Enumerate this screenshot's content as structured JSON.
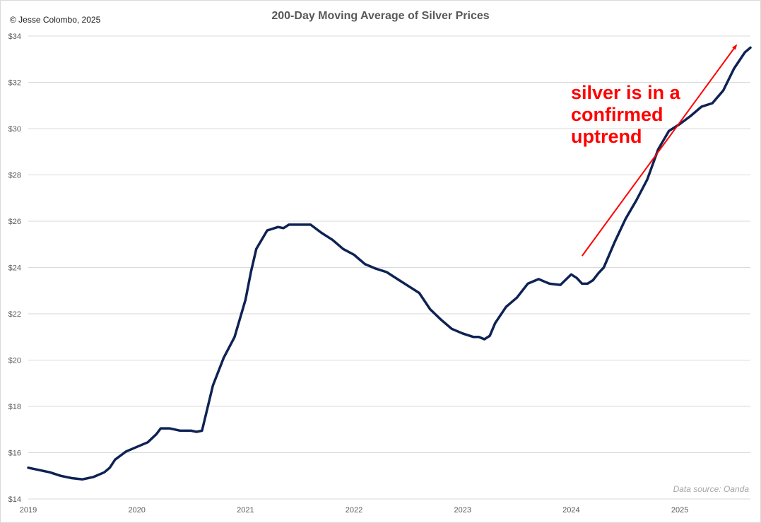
{
  "header": {
    "copyright": "© Jesse Colombo, 2025",
    "title": "200-Day Moving Average of Silver Prices"
  },
  "annotation": {
    "line1": "silver is in a",
    "line2": "confirmed",
    "line3": "uptrend",
    "color": "#ff0000"
  },
  "footer": {
    "source": "Data source: Oanda"
  },
  "colors": {
    "series": "#0e2254",
    "grid": "#d9d9d9",
    "arrow": "#ff0000"
  },
  "chart_data": {
    "type": "line",
    "title": "200-Day Moving Average of Silver Prices",
    "xlabel": "",
    "ylabel": "",
    "xlim": [
      2019.0,
      2025.65
    ],
    "ylim": [
      14,
      34
    ],
    "y_ticks": [
      14,
      16,
      18,
      20,
      22,
      24,
      26,
      28,
      30,
      32,
      34
    ],
    "y_tick_labels": [
      "$14",
      "$16",
      "$18",
      "$20",
      "$22",
      "$24",
      "$26",
      "$28",
      "$30",
      "$32",
      "$34"
    ],
    "x_ticks": [
      2019,
      2020,
      2021,
      2022,
      2023,
      2024,
      2025
    ],
    "x_tick_labels": [
      "2019",
      "2020",
      "2021",
      "2022",
      "2023",
      "2024",
      "2025"
    ],
    "grid": "horizontal",
    "legend": "none",
    "series": [
      {
        "x": [
          2019.0,
          2019.1,
          2019.2,
          2019.3,
          2019.4,
          2019.5,
          2019.6,
          2019.7,
          2019.75,
          2019.8,
          2019.9,
          2020.0,
          2020.1,
          2020.18,
          2020.22,
          2020.3,
          2020.4,
          2020.5,
          2020.55,
          2020.6,
          2020.7,
          2020.8,
          2020.9,
          2021.0,
          2021.05,
          2021.1,
          2021.2,
          2021.3,
          2021.35,
          2021.4,
          2021.5,
          2021.6,
          2021.7,
          2021.75,
          2021.8,
          2021.9,
          2022.0,
          2022.1,
          2022.2,
          2022.3,
          2022.4,
          2022.5,
          2022.6,
          2022.7,
          2022.8,
          2022.9,
          2023.0,
          2023.1,
          2023.15,
          2023.2,
          2023.25,
          2023.3,
          2023.4,
          2023.5,
          2023.6,
          2023.7,
          2023.75,
          2023.8,
          2023.9,
          2024.0,
          2024.05,
          2024.1,
          2024.15,
          2024.2,
          2024.25,
          2024.3,
          2024.4,
          2024.5,
          2024.6,
          2024.7,
          2024.8,
          2024.9,
          2025.0,
          2025.1,
          2025.2,
          2025.3,
          2025.4,
          2025.5,
          2025.6,
          2025.65
        ],
        "y": [
          15.35,
          15.25,
          15.15,
          15.0,
          14.9,
          14.85,
          14.95,
          15.15,
          15.35,
          15.7,
          16.05,
          16.25,
          16.45,
          16.8,
          17.05,
          17.05,
          16.95,
          16.95,
          16.9,
          16.95,
          18.9,
          20.1,
          21.0,
          22.6,
          23.8,
          24.8,
          25.6,
          25.75,
          25.7,
          25.85,
          25.85,
          25.85,
          25.5,
          25.35,
          25.2,
          24.8,
          24.55,
          24.15,
          23.95,
          23.8,
          23.5,
          23.2,
          22.9,
          22.2,
          21.75,
          21.35,
          21.15,
          21.0,
          21.0,
          20.9,
          21.05,
          21.6,
          22.3,
          22.7,
          23.3,
          23.5,
          23.4,
          23.3,
          23.25,
          23.7,
          23.55,
          23.3,
          23.3,
          23.45,
          23.75,
          24.0,
          25.1,
          26.1,
          26.9,
          27.8,
          29.1,
          29.9,
          30.2,
          30.55,
          30.95,
          31.1,
          31.65,
          32.6,
          33.3,
          33.5
        ]
      }
    ],
    "arrow": {
      "from": [
        2024.1,
        24.5
      ],
      "to": [
        2025.52,
        33.6
      ]
    }
  }
}
